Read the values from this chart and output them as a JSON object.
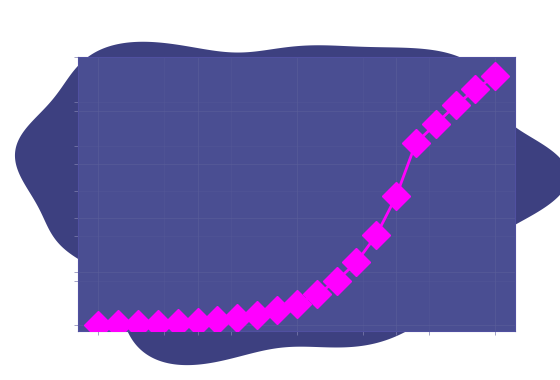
{
  "background_color": "#3d4080",
  "plot_bg_color": "#4a4e92",
  "figure_bg_color": "#ffffff",
  "blob_color": "#3d4080",
  "grid_color": "#5a5e9a",
  "marker_color": "#ff00ff",
  "marker_size": 14,
  "marker_style": "D",
  "line_color": "#ff00ff",
  "line_width": 2.0,
  "x_data": [
    0.0,
    0.05,
    0.1,
    0.15,
    0.2,
    0.25,
    0.3,
    0.35,
    0.4,
    0.45,
    0.5,
    0.55,
    0.6,
    0.65,
    0.7,
    0.75,
    0.8,
    0.85,
    0.9,
    0.95,
    1.0
  ],
  "y_data": [
    0.002,
    0.003,
    0.004,
    0.006,
    0.008,
    0.012,
    0.018,
    0.026,
    0.038,
    0.056,
    0.08,
    0.115,
    0.165,
    0.235,
    0.335,
    0.48,
    0.68,
    0.75,
    0.82,
    0.88,
    0.93
  ],
  "xlim": [
    -0.05,
    1.05
  ],
  "ylim": [
    -0.02,
    1.0
  ],
  "tick_color": "#8080b0",
  "label_color": "#8080b0",
  "spine_color": "#5050a0"
}
